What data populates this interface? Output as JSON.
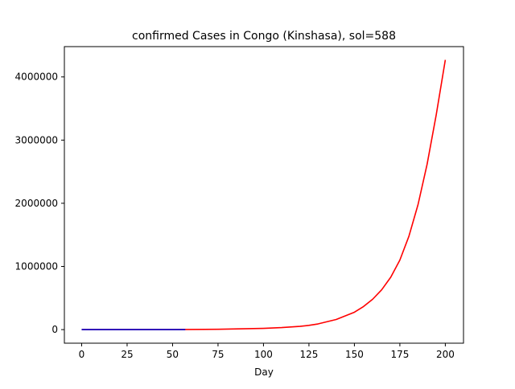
{
  "chart_data": {
    "type": "line",
    "title": "confirmed Cases in Congo (Kinshasa), sol=588",
    "xlabel": "Day",
    "ylabel": "",
    "xlim": [
      -9.5,
      210
    ],
    "ylim": [
      -215000,
      4480000
    ],
    "xticks": [
      0,
      25,
      50,
      75,
      100,
      125,
      150,
      175,
      200
    ],
    "yticks": [
      0,
      1000000,
      2000000,
      3000000,
      4000000
    ],
    "grid": false,
    "legend": "none",
    "series": [
      {
        "color": "#ff0000",
        "x": [
          0,
          25,
          50,
          75,
          100,
          110,
          120,
          125,
          130,
          140,
          150,
          155,
          160,
          165,
          170,
          175,
          180,
          185,
          190,
          195,
          200
        ],
        "y": [
          0,
          0,
          1000,
          5000,
          20000,
          32000,
          52000,
          67000,
          90000,
          160000,
          275000,
          365000,
          480000,
          630000,
          830000,
          1100000,
          1480000,
          1980000,
          2620000,
          3400000,
          4270000
        ]
      },
      {
        "color": "#0000cc",
        "x": [
          0,
          10,
          20,
          30,
          40,
          50,
          57
        ],
        "y": [
          0,
          0,
          0,
          0,
          0,
          100,
          150
        ]
      }
    ]
  }
}
